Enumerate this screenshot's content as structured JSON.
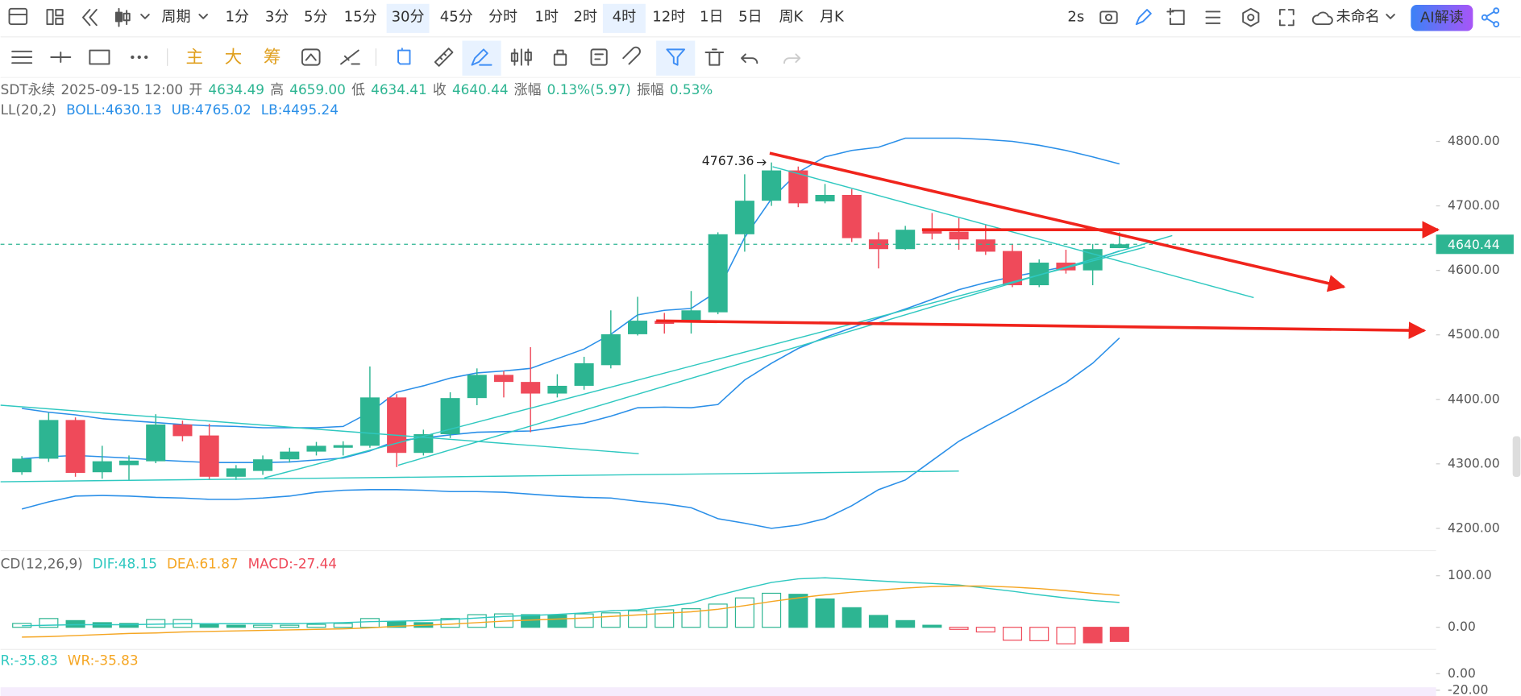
{
  "toolbar": {
    "period_label": "周期",
    "periods": [
      {
        "label": "1分"
      },
      {
        "label": "3分"
      },
      {
        "label": "5分"
      },
      {
        "label": "15分"
      },
      {
        "label": "30分",
        "selected": true
      },
      {
        "label": "45分"
      },
      {
        "label": "分时"
      },
      {
        "label": "1时"
      },
      {
        "label": "2时"
      },
      {
        "label": "4时",
        "selected": true
      },
      {
        "label": "12时"
      },
      {
        "label": "1日"
      },
      {
        "label": "5日"
      },
      {
        "label": "周K"
      },
      {
        "label": "月K"
      }
    ],
    "refresh": "2s",
    "layout_name": "未命名",
    "ai_button": "AI解读",
    "indicators": [
      "主",
      "大",
      "筹"
    ]
  },
  "info": [
    {
      "text": "SDT永续",
      "color": "#666666"
    },
    {
      "text": "2025-09-15 12:00",
      "color": "#666666"
    },
    {
      "text": "开",
      "color": "#666666"
    },
    {
      "text": "4634.49",
      "color": "#2db592"
    },
    {
      "text": "高",
      "color": "#666666"
    },
    {
      "text": "4659.00",
      "color": "#2db592"
    },
    {
      "text": "低",
      "color": "#666666"
    },
    {
      "text": "4634.41",
      "color": "#2db592"
    },
    {
      "text": "收",
      "color": "#666666"
    },
    {
      "text": "4640.44",
      "color": "#2db592"
    },
    {
      "text": "涨幅",
      "color": "#666666"
    },
    {
      "text": "0.13%(5.97)",
      "color": "#2db592"
    },
    {
      "text": "振幅",
      "color": "#666666"
    },
    {
      "text": "0.53%",
      "color": "#2db592"
    }
  ],
  "chart_data": [
    {
      "type": "candlestick",
      "legend": [
        {
          "text": "LL(20,2)",
          "color": "#666666"
        },
        {
          "text": "BOLL:4630.13",
          "color": "#2a8fe8"
        },
        {
          "text": "UB:4765.02",
          "color": "#2a8fe8"
        },
        {
          "text": "LB:4495.24",
          "color": "#2a8fe8"
        }
      ],
      "up_color": "#2db592",
      "down_color": "#ef4a5a",
      "open": [
        4287,
        4308,
        4368,
        4287,
        4298,
        4304,
        4361,
        4344,
        4280,
        4289,
        4307,
        4319,
        4325,
        4328,
        4403,
        4317,
        4346,
        4402,
        4438,
        4427,
        4409,
        4421,
        4453,
        4501,
        4522,
        4522,
        4535,
        4656,
        4708,
        4755,
        4707,
        4717,
        4648,
        4633,
        4663,
        4660,
        4648,
        4630,
        4577,
        4612,
        4600,
        4634.49
      ],
      "high": [
        4312,
        4379,
        4372,
        4328,
        4313,
        4377,
        4367,
        4362,
        4298,
        4313,
        4325,
        4334,
        4335,
        4451,
        4408,
        4353,
        4411,
        4448,
        4444,
        4481,
        4439,
        4466,
        4538,
        4559,
        4534,
        4568,
        4659,
        4749,
        4767.36,
        4761,
        4734,
        4726,
        4659,
        4669,
        4689,
        4681,
        4671,
        4641,
        4617,
        4632,
        4641,
        4659
      ],
      "low": [
        4283,
        4303,
        4280,
        4277,
        4275,
        4301,
        4335,
        4275,
        4275,
        4283,
        4302,
        4313,
        4313,
        4325,
        4295,
        4313,
        4340,
        4391,
        4403,
        4349,
        4403,
        4415,
        4448,
        4499,
        4502,
        4502,
        4532,
        4629,
        4700,
        4698,
        4704,
        4644,
        4603,
        4632,
        4648,
        4632,
        4624,
        4574,
        4574,
        4595,
        4577,
        4634.41
      ],
      "close": [
        4308,
        4368,
        4286,
        4304,
        4305,
        4361,
        4343,
        4280,
        4293,
        4307,
        4319,
        4328,
        4329,
        4403,
        4317,
        4346,
        4402,
        4438,
        4427,
        4409,
        4421,
        4456,
        4501,
        4522,
        4517,
        4538,
        4656,
        4708,
        4755,
        4704,
        4717,
        4650,
        4633,
        4663,
        4657,
        4648,
        4629,
        4577,
        4612,
        4600,
        4633,
        4640.44
      ],
      "series": [
        {
          "color": "#2a8fe8",
          "values": [
            4386,
            4380,
            4376,
            4370,
            4367,
            4364,
            4361,
            4359,
            4358,
            4356,
            4356,
            4356,
            4358,
            4380,
            4411,
            4421,
            4433,
            4441,
            4444,
            4448,
            4463,
            4478,
            4501,
            4531,
            4538,
            4541,
            4568,
            4651,
            4711,
            4752,
            4776,
            4786,
            4791,
            4805,
            4805,
            4805,
            4803,
            4800,
            4794,
            4786,
            4776,
            4765.02
          ]
        },
        {
          "color": "#2a8fe8",
          "values": [
            4308,
            4311,
            4313,
            4311,
            4309,
            4306,
            4304,
            4302,
            4302,
            4302,
            4303,
            4306,
            4309,
            4320,
            4336,
            4340,
            4345,
            4349,
            4350,
            4351,
            4357,
            4363,
            4374,
            4387,
            4388,
            4387,
            4392,
            4430,
            4456,
            4479,
            4496,
            4511,
            4526,
            4540,
            4555,
            4570,
            4581,
            4590,
            4598,
            4606,
            4616,
            4630.13
          ]
        },
        {
          "color": "#2a8fe8",
          "values": [
            4230,
            4241,
            4250,
            4251,
            4250,
            4248,
            4247,
            4245,
            4245,
            4247,
            4250,
            4256,
            4259,
            4260,
            4260,
            4259,
            4257,
            4257,
            4256,
            4253,
            4250,
            4248,
            4247,
            4242,
            4238,
            4232,
            4215,
            4208,
            4200,
            4205,
            4215,
            4235,
            4260,
            4275,
            4305,
            4335,
            4358,
            4380,
            4403,
            4426,
            4456,
            4495.24
          ]
        }
      ],
      "last_price": 4640.44,
      "ylim": [
        4170,
        4899
      ],
      "yticks": [
        {
          "value": 4200,
          "label": "4200.00"
        },
        {
          "value": 4300,
          "label": "4300.00"
        },
        {
          "value": 4400,
          "label": "4400.00"
        },
        {
          "value": 4500,
          "label": "4500.00"
        },
        {
          "value": 4600,
          "label": "4600.00"
        },
        {
          "value": 4700,
          "label": "4700.00"
        },
        {
          "value": 4800,
          "label": "4800.00"
        }
      ]
    },
    {
      "type": "macd",
      "legend": [
        {
          "text": "CD(12,26,9)",
          "color": "#666666"
        },
        {
          "text": "DIF:48.15",
          "color": "#2fc8c0"
        },
        {
          "text": "DEA:61.87",
          "color": "#f5a623"
        },
        {
          "text": "MACD:-27.44",
          "color": "#ef4a5a"
        }
      ],
      "up_color": "#2db592",
      "down_color": "#ef4a5a",
      "values": [
        7.5,
        17,
        13,
        9,
        7.5,
        15,
        15,
        6,
        4,
        4,
        4,
        5.7,
        7.5,
        17,
        11,
        9,
        17,
        24.5,
        26,
        24.5,
        24,
        26,
        28,
        32,
        34,
        36,
        45,
        57,
        66,
        64,
        55,
        38,
        23,
        13,
        4,
        -4,
        -9,
        -25,
        -26,
        -32,
        -30,
        -27.44
      ],
      "series": [
        {
          "color": "#2fc8c0",
          "values": [
            3,
            4,
            5,
            5,
            5,
            6,
            7,
            7,
            7,
            7,
            7,
            8,
            9,
            11,
            12,
            13,
            15,
            18,
            21,
            23,
            25,
            28,
            32,
            34,
            40,
            47,
            62,
            75,
            87,
            94,
            96,
            93,
            90,
            87,
            85,
            82,
            76,
            70,
            63,
            57,
            52,
            48.15
          ]
        },
        {
          "color": "#f5a623",
          "values": [
            -19,
            -18,
            -16,
            -14,
            -12,
            -11,
            -9,
            -8,
            -7,
            -6,
            -5,
            -4,
            -3,
            -1,
            2,
            4,
            6,
            9,
            12,
            14,
            16,
            18,
            21,
            24,
            27,
            30,
            35,
            42,
            50,
            57,
            63,
            68,
            72,
            76,
            79,
            80,
            80,
            78,
            75,
            71,
            66,
            61.87
          ]
        }
      ],
      "ylim": [
        -43,
        145
      ],
      "yticks": [
        {
          "value": 0,
          "label": "0.00"
        },
        {
          "value": 100,
          "label": "100.00"
        }
      ]
    },
    {
      "type": "wr",
      "legend": [
        {
          "text": "R:-35.83",
          "color": "#2fc8c0"
        },
        {
          "text": "WR:-35.83",
          "color": "#f5a623"
        }
      ],
      "ylim": [
        -27,
        27
      ],
      "yticks": [
        {
          "value": 0,
          "label": "0.00"
        },
        {
          "value": -20,
          "label": "-20.00"
        }
      ]
    }
  ]
}
